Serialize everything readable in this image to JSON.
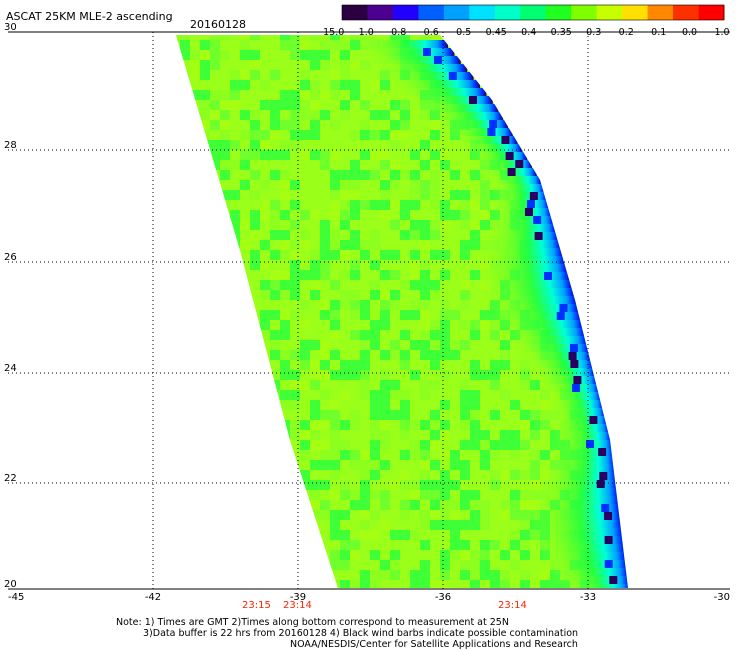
{
  "header": {
    "title": "ASCAT 25KM MLE-2 ascending",
    "date": "20160128"
  },
  "colorbar": {
    "labels": [
      "-15.0",
      "-1.0",
      "-0.8",
      "-0.6",
      "-0.5",
      "-0.45",
      "-0.4",
      "-0.35",
      "-0.3",
      "-0.2",
      "-0.1",
      "0.0",
      "1.0"
    ],
    "colors": [
      "#2a0040",
      "#4b0090",
      "#2200ff",
      "#0060ff",
      "#00a0ff",
      "#00e0ff",
      "#00ffc8",
      "#00ff70",
      "#20ff20",
      "#80ff00",
      "#c8ff00",
      "#ffe000",
      "#ff8800",
      "#ff3000",
      "#ff0000"
    ]
  },
  "map": {
    "x_ticks": [
      "-45",
      "-42",
      "-39",
      "-36",
      "-33",
      "-30"
    ],
    "y_ticks": [
      "30",
      "28",
      "26",
      "24",
      "22",
      "20"
    ],
    "times": [
      "23:15",
      "23:14",
      "23:14"
    ],
    "time_color": "#ff2200",
    "gridline_style": "dotted",
    "swath_colors": {
      "dominant": "#9aff1a",
      "green": "#20ff40",
      "cyan": "#00ffd8",
      "blue": "#0030ff",
      "dark": "#2a0060"
    }
  },
  "notes": {
    "line1": "Note: 1) Times are GMT 2)Times along bottom correspond to measurement at 25N",
    "line2": "3)Data buffer is 22 hrs from 20160128 4) Black wind barbs indicate possible contamination",
    "line3": "NOAA/NESDIS/Center for Satellite Applications and Research"
  }
}
